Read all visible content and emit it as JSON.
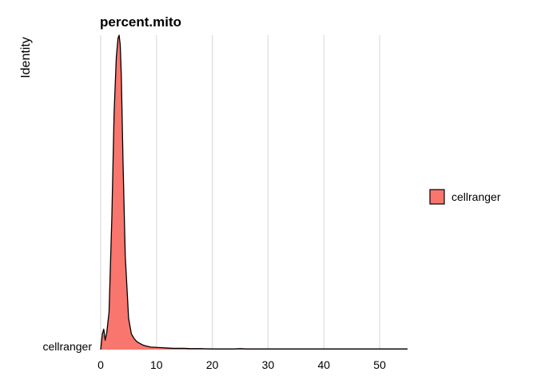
{
  "chart_data": {
    "type": "area",
    "title": "percent.mito",
    "xlabel": "",
    "ylabel": "Identity",
    "xlim": [
      0,
      55
    ],
    "x_ticks": [
      0,
      10,
      20,
      30,
      40,
      50
    ],
    "y_category": "cellranger",
    "grid": "vertical",
    "legend_position": "right",
    "colors": {
      "fill": "#f8766d",
      "stroke": "#000000"
    },
    "series": [
      {
        "name": "cellranger",
        "x": [
          0,
          0.3,
          0.55,
          0.8,
          1.1,
          1.5,
          2.0,
          2.4,
          2.8,
          3.1,
          3.3,
          3.5,
          3.7,
          4.0,
          4.4,
          5.0,
          5.5,
          6.0,
          6.5,
          7.0,
          7.5,
          8.0,
          9.0,
          10.0,
          11.0,
          12.0,
          13.0,
          14.0,
          15.0,
          16.0,
          17.0,
          18.0,
          20.0,
          22.0,
          24.0,
          25.0,
          26.0,
          28.0,
          30.0,
          32.0,
          34.0,
          36.0,
          38.0,
          40.0,
          42.0,
          44.0,
          46.0,
          48.0,
          50.0,
          52.0,
          55.0
        ],
        "density": [
          0.0,
          0.05,
          0.065,
          0.03,
          0.055,
          0.12,
          0.42,
          0.75,
          0.93,
          0.99,
          1.0,
          0.97,
          0.87,
          0.6,
          0.3,
          0.1,
          0.05,
          0.035,
          0.025,
          0.02,
          0.015,
          0.012,
          0.008,
          0.007,
          0.006,
          0.005,
          0.004,
          0.004,
          0.004,
          0.003,
          0.003,
          0.003,
          0.002,
          0.002,
          0.002,
          0.003,
          0.002,
          0.002,
          0.002,
          0.002,
          0.002,
          0.002,
          0.002,
          0.002,
          0.002,
          0.002,
          0.002,
          0.002,
          0.002,
          0.002,
          0.002
        ]
      }
    ]
  }
}
